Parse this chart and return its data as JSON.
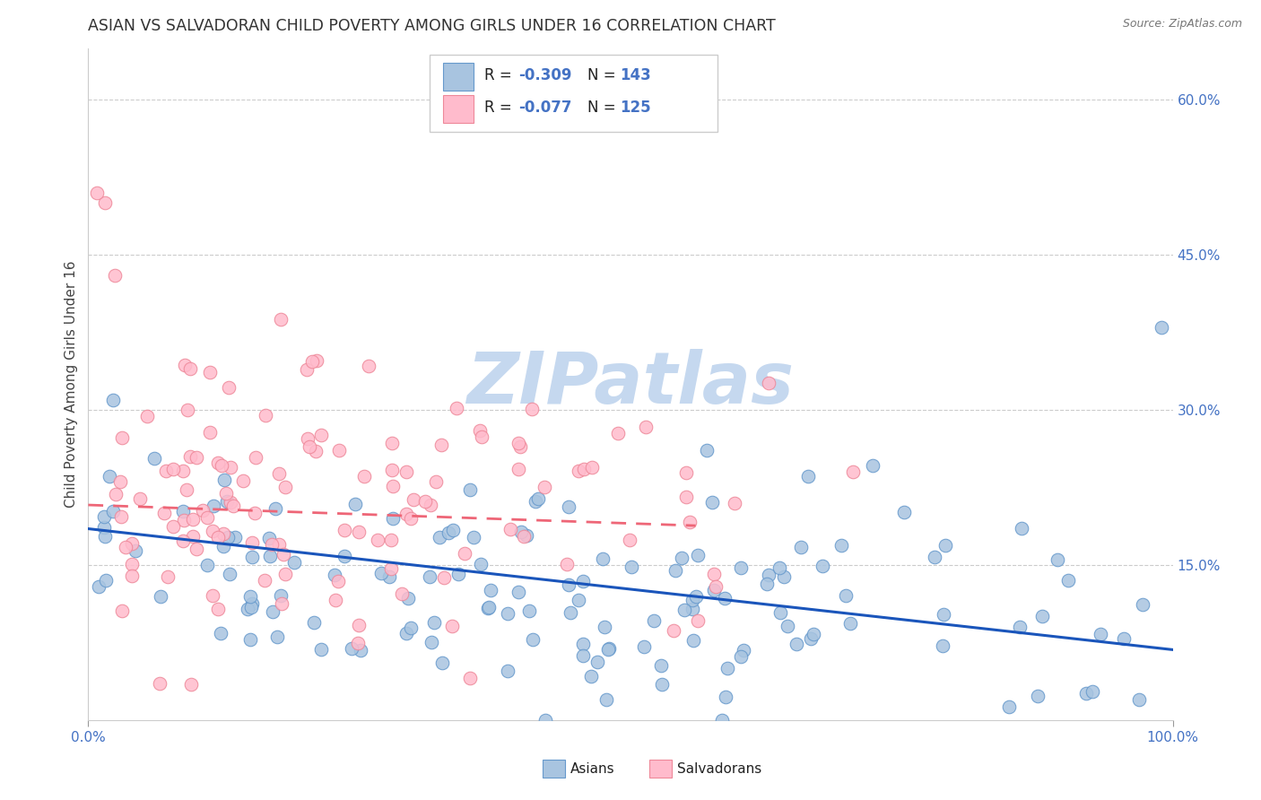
{
  "title": "ASIAN VS SALVADORAN CHILD POVERTY AMONG GIRLS UNDER 16 CORRELATION CHART",
  "source": "Source: ZipAtlas.com",
  "ylabel": "Child Poverty Among Girls Under 16",
  "xlim": [
    0,
    1.0
  ],
  "ylim": [
    0,
    0.65
  ],
  "yticks_right": [
    0.15,
    0.3,
    0.45,
    0.6
  ],
  "yticklabels_right": [
    "15.0%",
    "30.0%",
    "45.0%",
    "60.0%"
  ],
  "asian_color": "#a8c4e0",
  "asian_edge_color": "#6699cc",
  "salvadoran_color": "#ffbbcc",
  "salvadoran_edge_color": "#ee8899",
  "asian_line_color": "#1a55bb",
  "salvadoran_line_color": "#ee6677",
  "legend_R_asian": "-0.309",
  "legend_N_asian": "143",
  "legend_R_salvadoran": "-0.077",
  "legend_N_salvadoran": "125",
  "background_color": "#ffffff",
  "grid_color": "#cccccc",
  "watermark_color": "#c5d8ef",
  "asian_trend_x0": 0.0,
  "asian_trend_x1": 1.0,
  "asian_trend_y0": 0.185,
  "asian_trend_y1": 0.068,
  "salvadoran_trend_x0": 0.0,
  "salvadoran_trend_x1": 0.56,
  "salvadoran_trend_y0": 0.208,
  "salvadoran_trend_y1": 0.188,
  "title_color": "#333333",
  "title_fontsize": 12.5,
  "axis_label_color": "#444444",
  "tick_label_color": "#4472c4",
  "source_color": "#777777",
  "legend_text_color": "#222222",
  "legend_val_color": "#4472c4"
}
